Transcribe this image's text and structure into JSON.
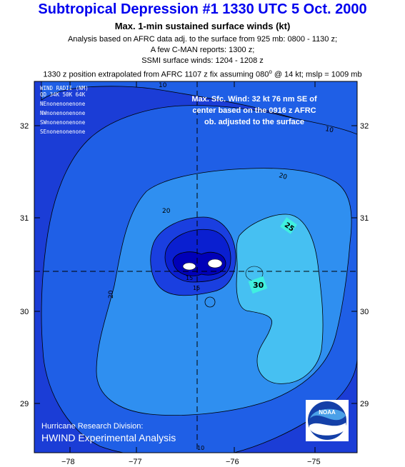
{
  "title": "Subtropical Depression #1 1330 UTC 5 Oct. 2000",
  "subtitle": "Max. 1-min sustained surface winds (kt)",
  "info_lines": [
    "Analysis based on AFRC data adj. to the surface from 925 mb:  0800 - 1130 z;",
    "A few C-MAN reports:  1300 z;",
    "SSMI surface winds:  1204 - 1208 z"
  ],
  "position_line_pre": "1330 z position extrapolated from AFRC 1107 z fix assuming 080",
  "position_line_sup": "o",
  "position_line_post": " @ 14 kt; mslp = 1009 mb",
  "wind_radii": {
    "title": "WIND RADII (NM)",
    "header": "QD 34K 50K 64K",
    "rows": [
      "NEnonenonenone",
      "NWnonenonenone",
      "SWnonenonenone",
      "SEnonenonenone"
    ]
  },
  "max_wind_note": [
    "Max. Sfc. Wind: 32 kt 76 nm SE of",
    "center based on the 0916 z AFRC",
    "ob. adjusted to the surface"
  ],
  "credit": {
    "line1": "Hurricane Research Division:",
    "line2": "HWIND Experimental Analysis"
  },
  "logo_text": "NOAA",
  "axes": {
    "x_ticks": [
      "−78",
      "−77",
      "−76",
      "−75"
    ],
    "y_ticks": [
      "32",
      "31",
      "30",
      "29"
    ]
  },
  "contour_labels": [
    "10",
    "10",
    "20",
    "20",
    "20",
    "25",
    "30",
    "15",
    "15",
    "10"
  ],
  "colors": {
    "title": "#0000ee",
    "level_0_10": "#1b3dd6",
    "level_10_20": "#1f5fe6",
    "level_20_25": "#2f8ff0",
    "level_25_30": "#46c0f2",
    "level_15_inner": "#1a3fe0",
    "core": "#0a1fd0",
    "innermost": "#0000b8",
    "marker": "#3ff0e0"
  }
}
